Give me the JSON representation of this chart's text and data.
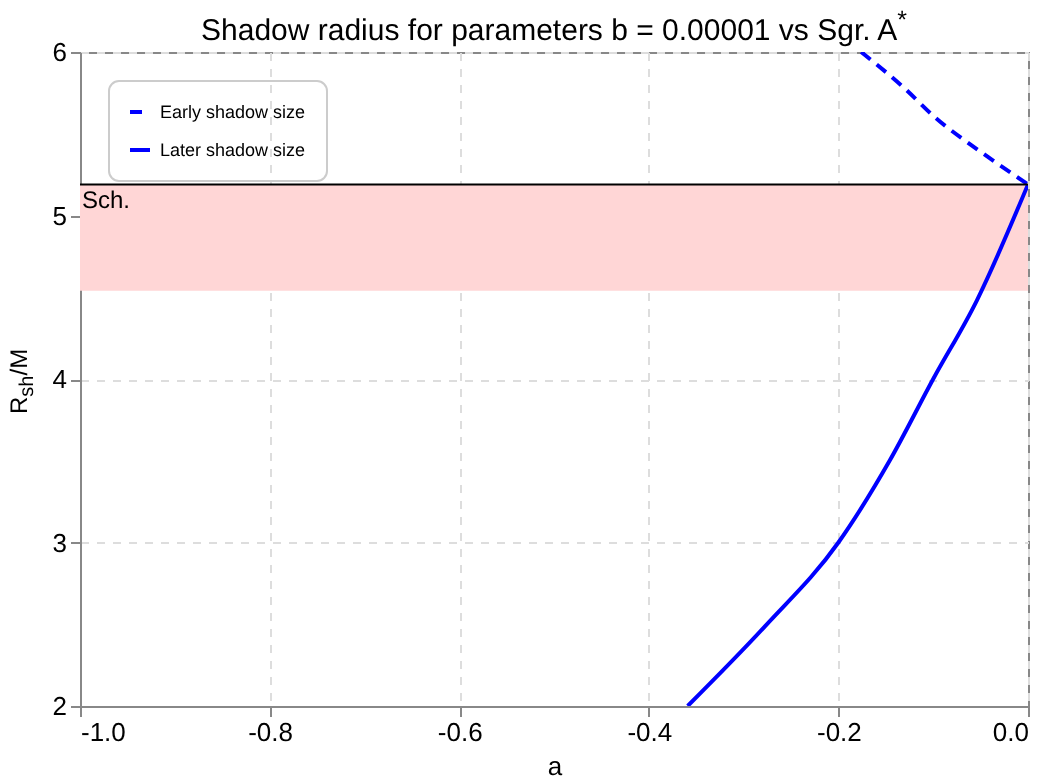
{
  "chart_data": {
    "type": "line",
    "title": "Shadow radius for parameters b = 0.00001 vs Sgr. A$^{*}$",
    "xlabel": "a",
    "ylabel": "R$_{sh}$/M",
    "xlim": [
      -1.0,
      0.0
    ],
    "xticks": [
      {
        "value": -1,
        "label": "-1.0"
      },
      {
        "value": -0.8,
        "label": "-0.8"
      },
      {
        "value": -0.6,
        "label": "-0.6"
      },
      {
        "value": -0.4,
        "label": "-0.4"
      },
      {
        "value": -0.2,
        "label": "-0.2"
      },
      {
        "value": 0,
        "label": "0.0"
      }
    ],
    "ylim": [
      2,
      6
    ],
    "yticks": [
      2,
      3,
      4,
      5,
      6
    ],
    "grid": true,
    "legend": "top left",
    "series": [
      {
        "name": "Early shadow size",
        "color": "#0000ff",
        "line_style": "dashed",
        "x": [
          -0.176,
          -0.1325,
          -0.098,
          -0.05,
          0
        ],
        "values": [
          6,
          5.79,
          5.6,
          5.39,
          5.19
        ]
      },
      {
        "name": "Later shadow size",
        "color": "#0000ff",
        "line_style": "solid",
        "x": [
          -0.359,
          -0.277,
          -0.2,
          -0.146,
          -0.1,
          -0.054,
          0
        ],
        "values": [
          2,
          2.49,
          3.0,
          3.5,
          4.0,
          4.48,
          5.19
        ]
      }
    ],
    "ref_lines": [
      {
        "axis": "y",
        "value": 5.19,
        "label": "Sch.",
        "color": "#000000"
      }
    ],
    "bands": [
      {
        "axis": "y",
        "from": 4.54,
        "to": 5.19,
        "color": "#ffd6d6"
      }
    ]
  }
}
